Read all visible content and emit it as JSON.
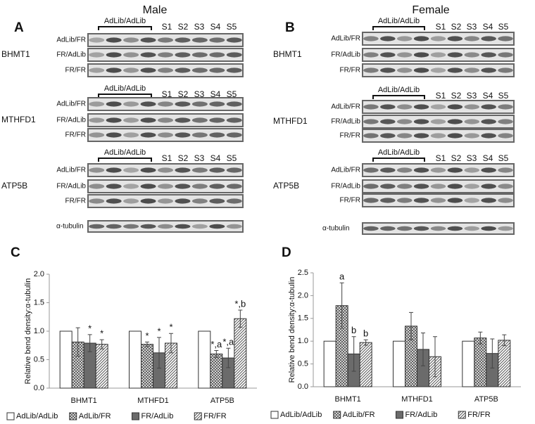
{
  "blots": [
    {
      "letter": "A",
      "title": "Male",
      "loading": "α-tubulin",
      "groups": [
        {
          "protein": "BHMT1",
          "header": "AdLib/AdLib",
          "lanes": [
            "S1",
            "S2",
            "S3",
            "S4",
            "S5"
          ],
          "rows": [
            "AdLib/FR",
            "FR/AdLib",
            "FR/FR"
          ]
        },
        {
          "protein": "MTHFD1",
          "header": "AdLib/AdLib",
          "lanes": [
            "S1",
            "S2",
            "S3",
            "S4",
            "S5"
          ],
          "rows": [
            "AdLib/FR",
            "FR/AdLib",
            "FR/FR"
          ]
        },
        {
          "protein": "ATP5B",
          "header": "AdLib/AdLib",
          "lanes": [
            "S1",
            "S2",
            "S3",
            "S4",
            "S5"
          ],
          "rows": [
            "AdLib/FR",
            "FR/AdLib",
            "FR/FR"
          ]
        }
      ]
    },
    {
      "letter": "B",
      "title": "Female",
      "loading": "α-tubulin",
      "groups": [
        {
          "protein": "BHMT1",
          "header": "AdLib/AdLib",
          "lanes": [
            "S1",
            "S2",
            "S3",
            "S4",
            "S5"
          ],
          "rows": [
            "AdLib/FR",
            "FR/AdLib",
            "FR/FR"
          ]
        },
        {
          "protein": "MTHFD1",
          "header": "AdLib/AdLib",
          "lanes": [
            "S1",
            "S2",
            "S3",
            "S4",
            "S5"
          ],
          "rows": [
            "AdLib/FR",
            "FR/AdLib",
            "FR/FR"
          ]
        },
        {
          "protein": "ATP5B",
          "header": "AdLib/AdLib",
          "lanes": [
            "S1",
            "S2",
            "S3",
            "S4",
            "S5"
          ],
          "rows": [
            "AdLib/FR",
            "FR/AdLib",
            "FR/FR"
          ]
        }
      ]
    }
  ],
  "chart_data": [
    {
      "type": "bar",
      "letter": "C",
      "ylabel": "Relative bend density:α-tubulin",
      "categories": [
        "BHMT1",
        "MTHFD1",
        "ATP5B"
      ],
      "ylim": [
        0,
        2
      ],
      "yticks": [
        {
          "value": 0,
          "label": "0.0"
        },
        {
          "value": 0.5,
          "label": "0.5"
        },
        {
          "value": 1,
          "label": "1.0"
        },
        {
          "value": 1.5,
          "label": "1.5"
        },
        {
          "value": 2,
          "label": "2.0"
        }
      ],
      "series": [
        {
          "name": "AdLib/AdLib",
          "color": "#ffffff",
          "pattern": "none",
          "values": [
            1,
            1,
            1
          ]
        },
        {
          "name": "AdLib/FR",
          "color": "#555555",
          "pattern": "crosshatch",
          "values": [
            0.81,
            0.77,
            0.6
          ],
          "errors": [
            0.25,
            0.04,
            0.06
          ],
          "annotations": [
            null,
            "*",
            "*,a"
          ]
        },
        {
          "name": "FR/AdLib",
          "color": "#6b6b6b",
          "pattern": "solid",
          "values": [
            0.79,
            0.62,
            0.53
          ],
          "errors": [
            0.15,
            0.27,
            0.17
          ],
          "annotations": [
            "*",
            "*",
            "*,a"
          ]
        },
        {
          "name": "FR/FR",
          "color": "#555555",
          "pattern": "diagonal",
          "values": [
            0.77,
            0.79,
            1.22
          ],
          "errors": [
            0.08,
            0.17,
            0.15
          ],
          "annotations": [
            "*",
            "*",
            "*,b"
          ]
        }
      ]
    },
    {
      "type": "bar",
      "letter": "D",
      "ylabel": "Relative bend density:α-tubulin",
      "categories": [
        "BHMT1",
        "MTHFD1",
        "ATP5B"
      ],
      "ylim": [
        0,
        2.5
      ],
      "yticks": [
        {
          "value": 0,
          "label": "0.0"
        },
        {
          "value": 0.5,
          "label": "0.5"
        },
        {
          "value": 1,
          "label": "1.0"
        },
        {
          "value": 1.5,
          "label": "1.5"
        },
        {
          "value": 2,
          "label": "2.0"
        },
        {
          "value": 2.5,
          "label": "2.5"
        }
      ],
      "series": [
        {
          "name": "AdLib/AdLib",
          "color": "#ffffff",
          "pattern": "none",
          "values": [
            1,
            1,
            1
          ]
        },
        {
          "name": "AdLib/FR",
          "color": "#555555",
          "pattern": "crosshatch",
          "values": [
            1.78,
            1.33,
            1.07
          ],
          "errors": [
            0.5,
            0.3,
            0.13
          ],
          "annotations": [
            "a",
            null,
            null
          ]
        },
        {
          "name": "FR/AdLib",
          "color": "#6b6b6b",
          "pattern": "solid",
          "values": [
            0.72,
            0.82,
            0.73
          ],
          "errors": [
            0.38,
            0.36,
            0.32
          ],
          "annotations": [
            "b",
            null,
            null
          ]
        },
        {
          "name": "FR/FR",
          "color": "#555555",
          "pattern": "diagonal",
          "values": [
            0.97,
            0.66,
            1.02
          ],
          "errors": [
            0.06,
            0.44,
            0.12
          ],
          "annotations": [
            "b",
            null,
            null
          ]
        }
      ]
    }
  ]
}
